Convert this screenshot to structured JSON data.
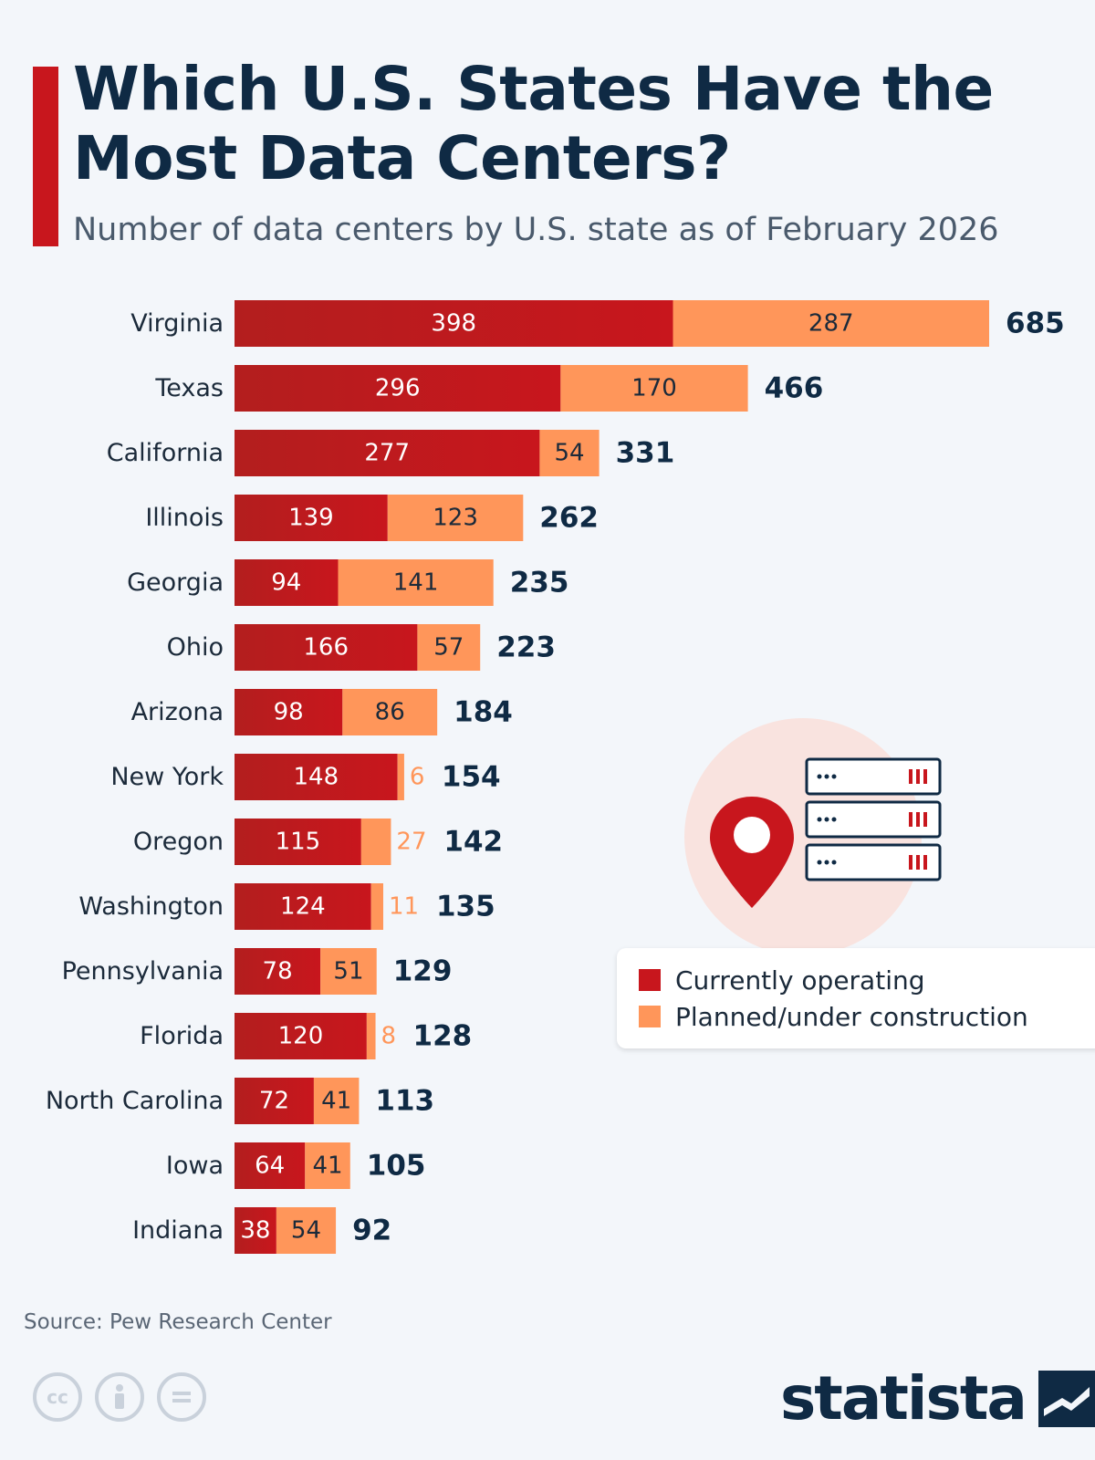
{
  "title": "Which U.S. States Have the Most Data Centers?",
  "subtitle": "Number of data centers by U.S. state as of February 2026",
  "colors": {
    "accent": "#c8161d",
    "operating": "#c8161d",
    "planned": "#ff965a",
    "text_dark": "#0f2a44"
  },
  "legend": {
    "operating_label": "Currently operating",
    "planned_label": "Planned/under construction"
  },
  "source": "Source: Pew Research Center",
  "brand": {
    "name": "statista",
    "icon": "statista-logo-icon"
  },
  "license_icons": [
    "cc-icon",
    "attribution-icon",
    "no-derivatives-icon"
  ],
  "chart_data": {
    "type": "bar",
    "orientation": "horizontal",
    "stacked": true,
    "categories": [
      "Virginia",
      "Texas",
      "California",
      "Illinois",
      "Georgia",
      "Ohio",
      "Arizona",
      "New York",
      "Oregon",
      "Washington",
      "Pennsylvania",
      "Florida",
      "North Carolina",
      "Iowa",
      "Indiana"
    ],
    "series": [
      {
        "name": "Currently operating",
        "values": [
          398,
          296,
          277,
          139,
          94,
          166,
          98,
          148,
          115,
          124,
          78,
          120,
          72,
          64,
          38
        ]
      },
      {
        "name": "Planned/under construction",
        "values": [
          287,
          170,
          54,
          123,
          141,
          57,
          86,
          6,
          27,
          11,
          51,
          8,
          41,
          41,
          54
        ]
      }
    ],
    "totals": [
      685,
      466,
      331,
      262,
      235,
      223,
      184,
      154,
      142,
      135,
      129,
      128,
      113,
      105,
      92
    ],
    "xlim": [
      0,
      685
    ],
    "grid": false,
    "legend_position": "right"
  }
}
